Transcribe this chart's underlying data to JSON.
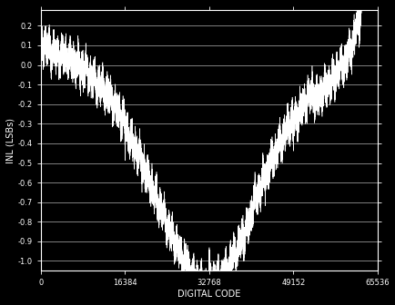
{
  "xlabel": "DIGITAL CODE",
  "ylabel": "INL (LSBs)",
  "xlim": [
    0,
    65536
  ],
  "ylim": [
    -1.05,
    0.28
  ],
  "yticks": [
    0.2,
    0.1,
    0.0,
    -0.1,
    -0.2,
    -0.3,
    -0.4,
    -0.5,
    -0.6,
    -0.7,
    -0.8,
    -0.9,
    -1.0
  ],
  "xticks": [
    0,
    16384,
    32768,
    49152,
    65536
  ],
  "xtick_labels": [
    "0",
    "16384",
    "32768",
    "49152",
    "65536"
  ],
  "line_color": "#ffffff",
  "bg_color": "#000000",
  "grid_color": "#ffffff",
  "tick_color": "#ffffff",
  "label_color": "#ffffff",
  "figsize": [
    4.35,
    3.36
  ],
  "dpi": 100,
  "seed": 42,
  "n_points": 65536
}
